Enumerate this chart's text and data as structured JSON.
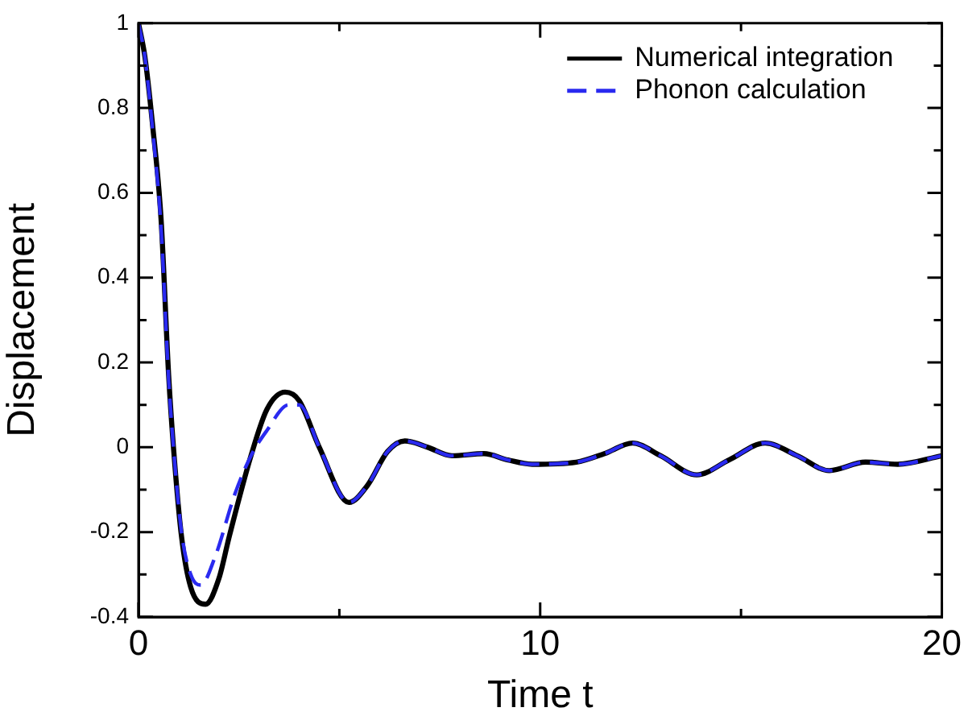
{
  "chart_data": {
    "type": "line",
    "xlabel": "Time t",
    "ylabel": "Displacement",
    "xlim": [
      0,
      20
    ],
    "xticks": [
      0,
      {
        "value": 5,
        "label": null
      },
      10,
      {
        "value": 15,
        "label": null
      },
      20
    ],
    "ylim": [
      -0.4,
      1
    ],
    "yticks": [
      -0.4,
      {
        "value": -0.3,
        "label": null
      },
      -0.2,
      {
        "value": -0.1,
        "label": null
      },
      0,
      {
        "value": 0.1,
        "label": null
      },
      0.2,
      {
        "value": 0.3,
        "label": null
      },
      0.4,
      {
        "value": 0.5,
        "label": null
      },
      0.6,
      {
        "value": 0.7,
        "label": null
      },
      0.8,
      {
        "value": 0.9,
        "label": null
      },
      1
    ],
    "grid": false,
    "legend": "top right",
    "marker": "none",
    "series": [
      {
        "name": "Numerical integration",
        "color": "#000000",
        "line_style": "solid",
        "x": [
          0,
          0.16,
          0.35,
          0.56,
          0.75,
          0.87,
          1.07,
          1.3,
          1.67,
          2.0,
          2.26,
          2.8,
          3.2,
          3.65,
          4.0,
          4.5,
          5.24,
          5.7,
          6.2,
          6.63,
          7.2,
          7.8,
          8.6,
          9.2,
          9.8,
          10.9,
          11.6,
          12.3,
          13.0,
          13.9,
          14.7,
          15.6,
          16.4,
          17.2,
          18.1,
          18.9,
          20
        ],
        "values": [
          1,
          0.92,
          0.76,
          0.54,
          0.17,
          0,
          -0.21,
          -0.33,
          -0.37,
          -0.31,
          -0.21,
          -0.02,
          0.09,
          0.13,
          0.11,
          0.0,
          -0.13,
          -0.09,
          -0.01,
          0.015,
          0.0,
          -0.02,
          -0.015,
          -0.03,
          -0.04,
          -0.035,
          -0.015,
          0.01,
          -0.02,
          -0.065,
          -0.03,
          0.01,
          -0.02,
          -0.055,
          -0.035,
          -0.04,
          -0.02
        ]
      },
      {
        "name": "Phonon calculation",
        "color": "#2a2af0",
        "line_style": "dashed",
        "x": [
          0,
          0.16,
          0.35,
          0.56,
          0.75,
          0.87,
          1.07,
          1.3,
          1.55,
          1.9,
          2.4,
          2.8,
          3.2,
          3.73,
          4.0,
          4.5,
          5.24,
          5.7,
          6.2,
          6.63,
          7.2,
          7.8,
          8.6,
          9.2,
          9.8,
          10.9,
          11.6,
          12.3,
          13.0,
          13.9,
          14.7,
          15.6,
          16.4,
          17.2,
          18.1,
          18.9,
          20
        ],
        "values": [
          1,
          0.92,
          0.75,
          0.52,
          0.16,
          0,
          -0.2,
          -0.3,
          -0.325,
          -0.26,
          -0.11,
          -0.02,
          0.04,
          0.1,
          0.1,
          0.0,
          -0.13,
          -0.09,
          -0.01,
          0.015,
          0.0,
          -0.02,
          -0.015,
          -0.03,
          -0.04,
          -0.035,
          -0.015,
          0.01,
          -0.02,
          -0.065,
          -0.03,
          0.01,
          -0.02,
          -0.055,
          -0.035,
          -0.04,
          -0.02
        ]
      }
    ]
  }
}
